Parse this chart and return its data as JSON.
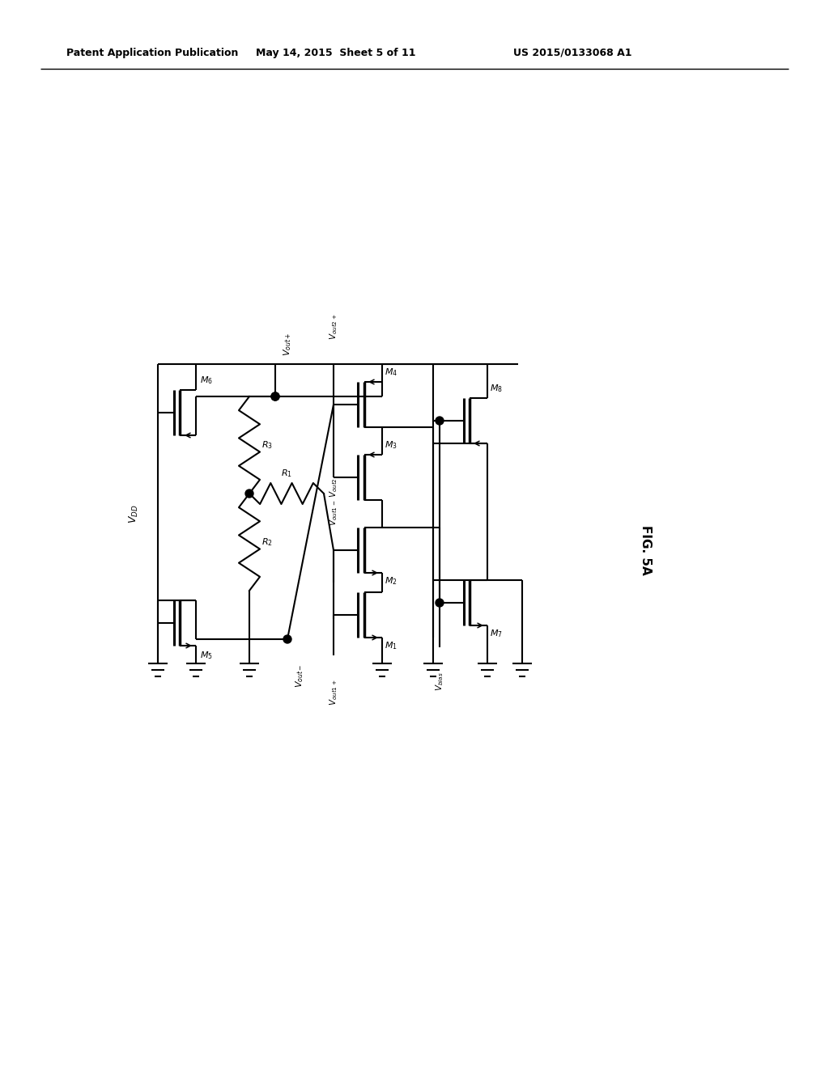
{
  "title_left": "Patent Application Publication",
  "title_mid": "May 14, 2015  Sheet 5 of 11",
  "title_right": "US 2015/0133068 A1",
  "fig_label": "FIG. 5A",
  "bg_color": "#ffffff",
  "line_color": "#000000",
  "lw": 1.5
}
